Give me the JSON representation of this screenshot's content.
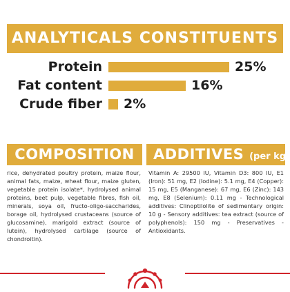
{
  "header": {
    "title": "ANALYTICALS CONSTITUENTS"
  },
  "analytics": [
    {
      "label": "Protein",
      "value": "25%",
      "percent": 25
    },
    {
      "label": "Fat content",
      "value": "16%",
      "percent": 16
    },
    {
      "label": "Crude fiber",
      "value": "2%",
      "percent": 2
    }
  ],
  "composition": {
    "title": "COMPOSITION",
    "text": "rice, dehydrated poultry protein, maize flour, animal fats, maize, wheat flour, maize gluten, vegetable protein isolate*, hydrolysed animal proteins, beet pulp, vegetable fibres, fish oil, minerals, soya oil, fructo-oligo-saccharides, borage oil, hydrolysed crustaceans (source of glucosamine), marigold extract (source of lutein), hydrolysed cartilage (source of chondroitin)."
  },
  "additives": {
    "title": "ADDITIVES",
    "subtitle": "(per kg)",
    "text": "Vitamin A: 29500 IU, Vitamin D3: 800 IU, E1 (Iron): 51 mg, E2 (Iodine): 5.1 mg, E4 (Copper): 15 mg, E5 (Manganese): 67 mg, E6 (Zinc): 143 mg, E8 (Selenium): 0.11 mg - Technological additives: Clinoptilolite of sedimentary origin: 10 g - Sensory additives: tea extract (source of polyphenols): 150 mg - Preservatives - Antioxidants."
  },
  "colors": {
    "accent": "#e0ac3c",
    "brand_red": "#d0242b",
    "text": "#1e1e1e"
  },
  "logo": {
    "name": "royal-canin-crown-logo"
  }
}
